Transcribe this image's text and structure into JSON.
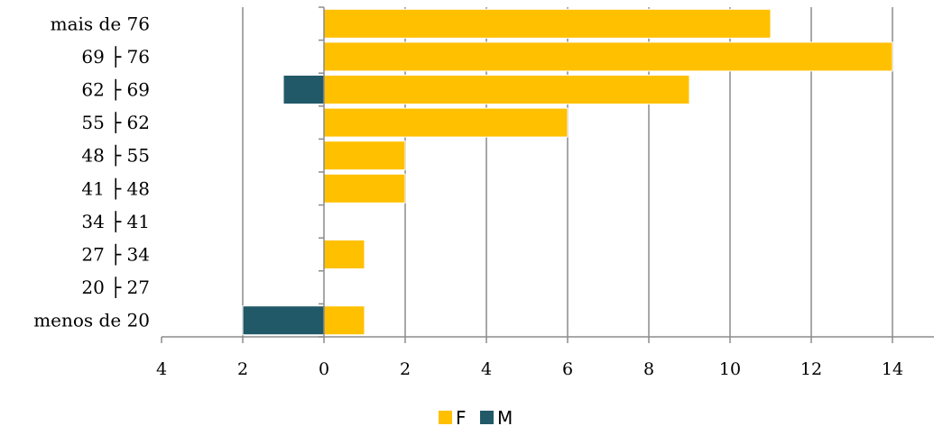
{
  "chart_data": {
    "type": "bar",
    "orientation": "horizontal",
    "layout": "population-pyramid",
    "categories": [
      "menos de 20",
      "20 ├ 27",
      "27 ├ 34",
      "34 ├ 41",
      "41 ├ 48",
      "48 ├ 55",
      "55 ├ 62",
      "62 ├ 69",
      "69 ├ 76",
      "mais de 76"
    ],
    "series": [
      {
        "name": "F",
        "color": "#FFC000",
        "direction": "right",
        "values": [
          1,
          0,
          1,
          0,
          2,
          2,
          6,
          9,
          14,
          11
        ]
      },
      {
        "name": "M",
        "color": "#215968",
        "direction": "left",
        "values": [
          2,
          0,
          0,
          0,
          0,
          0,
          0,
          1,
          0,
          0
        ]
      }
    ],
    "x_ticks": [
      "4",
      "2",
      "0",
      "2",
      "4",
      "6",
      "8",
      "10",
      "12",
      "14"
    ],
    "xlim": [
      -4,
      15
    ],
    "grid": true,
    "legend_position": "bottom",
    "title": "",
    "xlabel": "",
    "ylabel": ""
  }
}
